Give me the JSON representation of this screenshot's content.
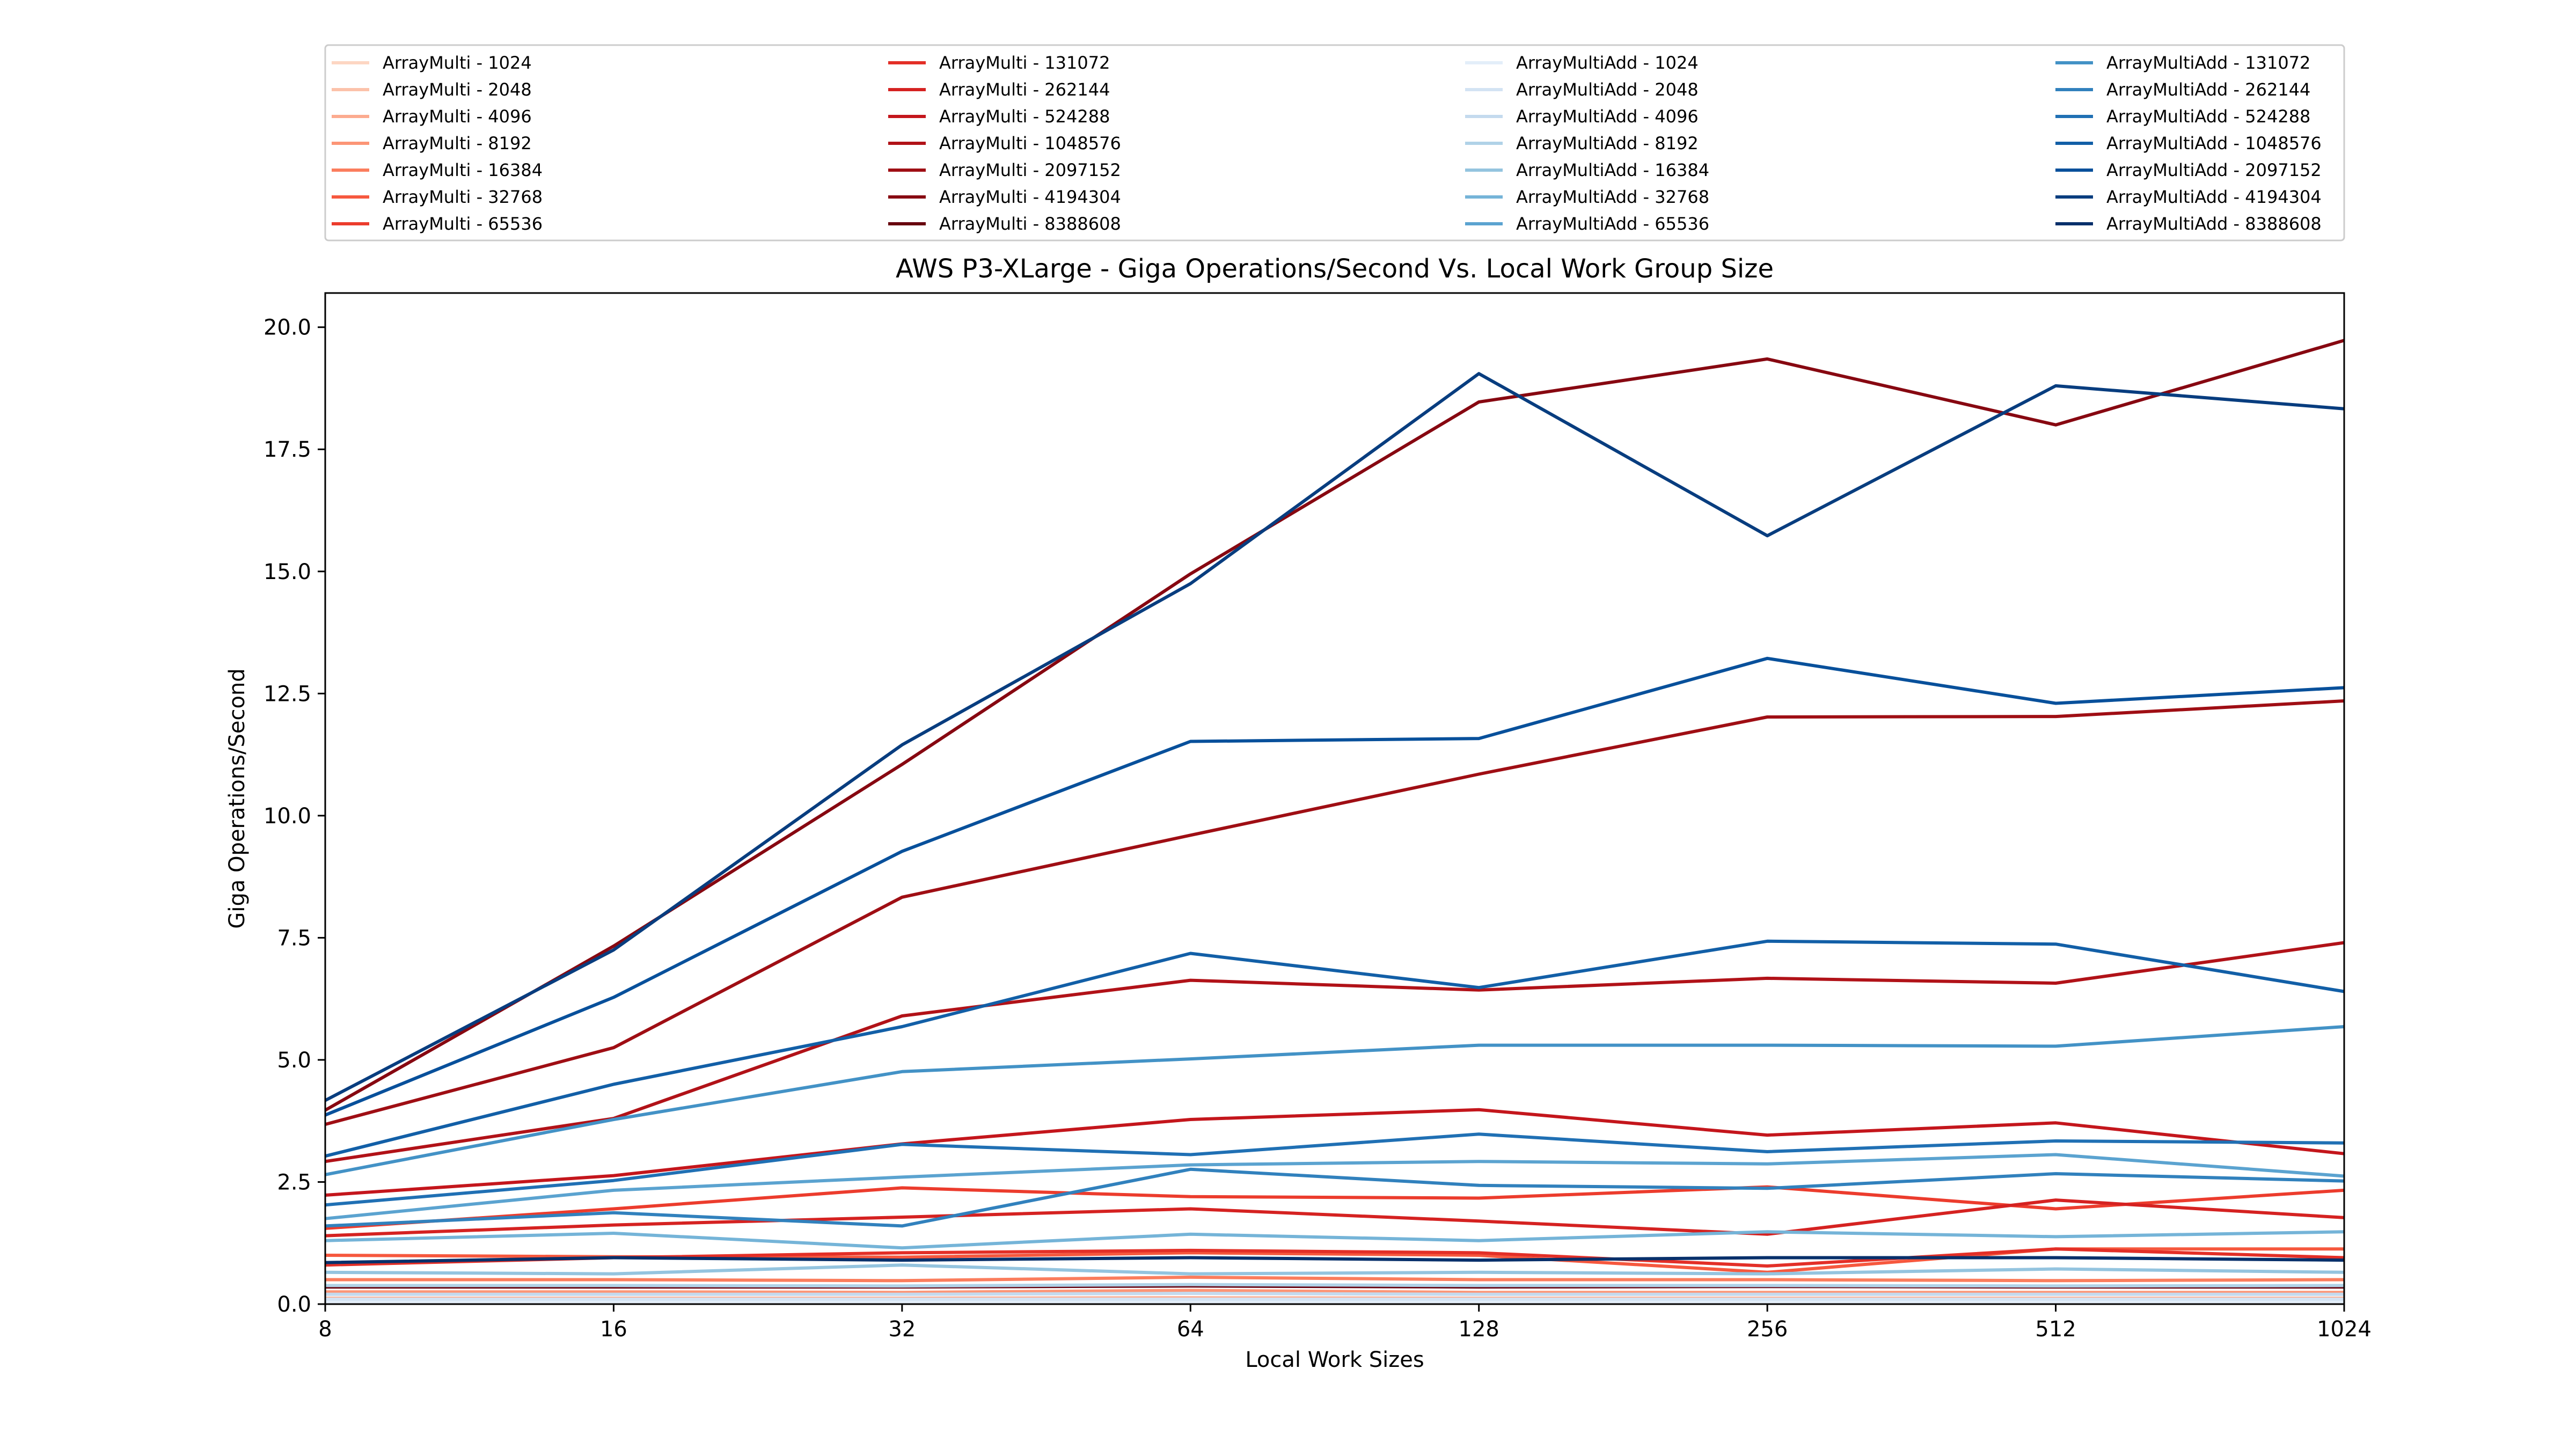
{
  "chart_data": {
    "type": "line",
    "title": "AWS P3-XLarge - Giga Operations/Second Vs. Local Work Group Size",
    "xlabel": "Local Work Sizes",
    "ylabel": "Giga Operations/Second",
    "x": [
      8,
      16,
      32,
      64,
      128,
      256,
      512,
      1024
    ],
    "x_tick_labels": [
      "8",
      "16",
      "32",
      "64",
      "128",
      "256",
      "512",
      "1024"
    ],
    "x_scale": "log2",
    "ylim": [
      0,
      20.7
    ],
    "y_ticks": [
      0.0,
      2.5,
      5.0,
      7.5,
      10.0,
      12.5,
      15.0,
      17.5,
      20.0
    ],
    "y_tick_labels": [
      "0.0",
      "2.5",
      "5.0",
      "7.5",
      "10.0",
      "12.5",
      "15.0",
      "17.5",
      "20.0"
    ],
    "legend_position": "above plot, 4 columns",
    "series": [
      {
        "name": "ArrayMulti - 1024",
        "color": "#fdd6c3",
        "values": [
          0.03,
          0.03,
          0.03,
          0.03,
          0.03,
          0.03,
          0.03,
          0.03
        ]
      },
      {
        "name": "ArrayMulti - 2048",
        "color": "#fcc2aa",
        "values": [
          0.06,
          0.06,
          0.06,
          0.06,
          0.06,
          0.06,
          0.06,
          0.06
        ]
      },
      {
        "name": "ArrayMulti - 4096",
        "color": "#fcab8f",
        "values": [
          0.12,
          0.12,
          0.12,
          0.13,
          0.12,
          0.12,
          0.12,
          0.12
        ]
      },
      {
        "name": "ArrayMulti - 8192",
        "color": "#fc9576",
        "values": [
          0.25,
          0.25,
          0.24,
          0.28,
          0.24,
          0.24,
          0.24,
          0.24
        ]
      },
      {
        "name": "ArrayMulti - 16384",
        "color": "#fb7d5d",
        "values": [
          0.5,
          0.5,
          0.48,
          0.55,
          0.5,
          0.5,
          0.48,
          0.5
        ]
      },
      {
        "name": "ArrayMulti - 32768",
        "color": "#f6583e",
        "values": [
          1.0,
          0.97,
          0.96,
          1.05,
          1.0,
          0.65,
          1.13,
          1.13
        ]
      },
      {
        "name": "ArrayMulti - 65536",
        "color": "#ec3c2d",
        "values": [
          1.55,
          1.95,
          2.38,
          2.2,
          2.17,
          2.4,
          1.95,
          2.33
        ]
      },
      {
        "name": "ArrayMulti - 131072",
        "color": "#e32f27",
        "values": [
          0.8,
          0.95,
          1.05,
          1.1,
          1.05,
          0.78,
          1.13,
          0.95
        ]
      },
      {
        "name": "ArrayMulti - 262144",
        "color": "#d52221",
        "values": [
          1.4,
          1.62,
          1.78,
          1.95,
          1.7,
          1.43,
          2.13,
          1.77
        ]
      },
      {
        "name": "ArrayMulti - 524288",
        "color": "#c4161c",
        "values": [
          2.23,
          2.63,
          3.28,
          3.78,
          3.98,
          3.46,
          3.71,
          3.08
        ]
      },
      {
        "name": "ArrayMulti - 1048576",
        "color": "#b11218",
        "values": [
          2.92,
          3.8,
          5.9,
          6.63,
          6.43,
          6.67,
          6.57,
          7.4
        ]
      },
      {
        "name": "ArrayMulti - 2097152",
        "color": "#9f0e14",
        "values": [
          3.68,
          5.25,
          8.33,
          9.6,
          10.85,
          12.02,
          12.03,
          12.35
        ]
      },
      {
        "name": "ArrayMulti - 4194304",
        "color": "#870811",
        "values": [
          3.97,
          7.33,
          11.05,
          14.95,
          18.47,
          19.35,
          18.0,
          19.73
        ]
      },
      {
        "name": "ArrayMulti - 8388608",
        "color": "#67000d",
        "values": [
          0.35,
          0.35,
          0.35,
          0.37,
          0.35,
          0.36,
          0.35,
          0.35
        ]
      },
      {
        "name": "ArrayMultiAdd - 1024",
        "color": "#e3eef9",
        "values": [
          0.05,
          0.05,
          0.05,
          0.05,
          0.05,
          0.05,
          0.05,
          0.05
        ]
      },
      {
        "name": "ArrayMultiAdd - 2048",
        "color": "#d3e3f3",
        "values": [
          0.1,
          0.1,
          0.1,
          0.1,
          0.1,
          0.1,
          0.1,
          0.1
        ]
      },
      {
        "name": "ArrayMultiAdd - 4096",
        "color": "#c4daee",
        "values": [
          0.2,
          0.2,
          0.2,
          0.22,
          0.2,
          0.2,
          0.2,
          0.2
        ]
      },
      {
        "name": "ArrayMultiAdd - 8192",
        "color": "#b0d2e7",
        "values": [
          0.38,
          0.38,
          0.37,
          0.4,
          0.38,
          0.38,
          0.37,
          0.38
        ]
      },
      {
        "name": "ArrayMultiAdd - 16384",
        "color": "#94c4df",
        "values": [
          0.65,
          0.62,
          0.8,
          0.62,
          0.65,
          0.62,
          0.72,
          0.65
        ]
      },
      {
        "name": "ArrayMultiAdd - 32768",
        "color": "#75b4d8",
        "values": [
          1.3,
          1.45,
          1.15,
          1.43,
          1.3,
          1.48,
          1.38,
          1.48
        ]
      },
      {
        "name": "ArrayMultiAdd - 65536",
        "color": "#5ba3d0",
        "values": [
          1.75,
          2.33,
          2.6,
          2.85,
          2.92,
          2.87,
          3.06,
          2.62
        ]
      },
      {
        "name": "ArrayMultiAdd - 131072",
        "color": "#4392c6",
        "values": [
          2.65,
          3.78,
          4.76,
          5.02,
          5.3,
          5.3,
          5.28,
          5.68
        ]
      },
      {
        "name": "ArrayMultiAdd - 262144",
        "color": "#3181bd",
        "values": [
          1.6,
          1.87,
          1.6,
          2.76,
          2.43,
          2.37,
          2.67,
          2.52
        ]
      },
      {
        "name": "ArrayMultiAdd - 524288",
        "color": "#2070b4",
        "values": [
          2.03,
          2.53,
          3.27,
          3.06,
          3.48,
          3.12,
          3.34,
          3.3
        ]
      },
      {
        "name": "ArrayMultiAdd - 1048576",
        "color": "#125fa7",
        "values": [
          3.03,
          4.5,
          5.68,
          7.18,
          6.48,
          7.43,
          7.37,
          6.4
        ]
      },
      {
        "name": "ArrayMultiAdd - 2097152",
        "color": "#08509b",
        "values": [
          3.87,
          6.28,
          9.27,
          11.52,
          11.58,
          13.22,
          12.3,
          12.62
        ]
      },
      {
        "name": "ArrayMultiAdd - 4194304",
        "color": "#083d7f",
        "values": [
          4.17,
          7.25,
          11.45,
          14.75,
          19.05,
          15.73,
          18.8,
          18.33
        ]
      },
      {
        "name": "ArrayMultiAdd - 8388608",
        "color": "#08306b",
        "values": [
          0.85,
          0.95,
          0.9,
          0.95,
          0.9,
          0.95,
          0.95,
          0.9
        ]
      }
    ]
  }
}
